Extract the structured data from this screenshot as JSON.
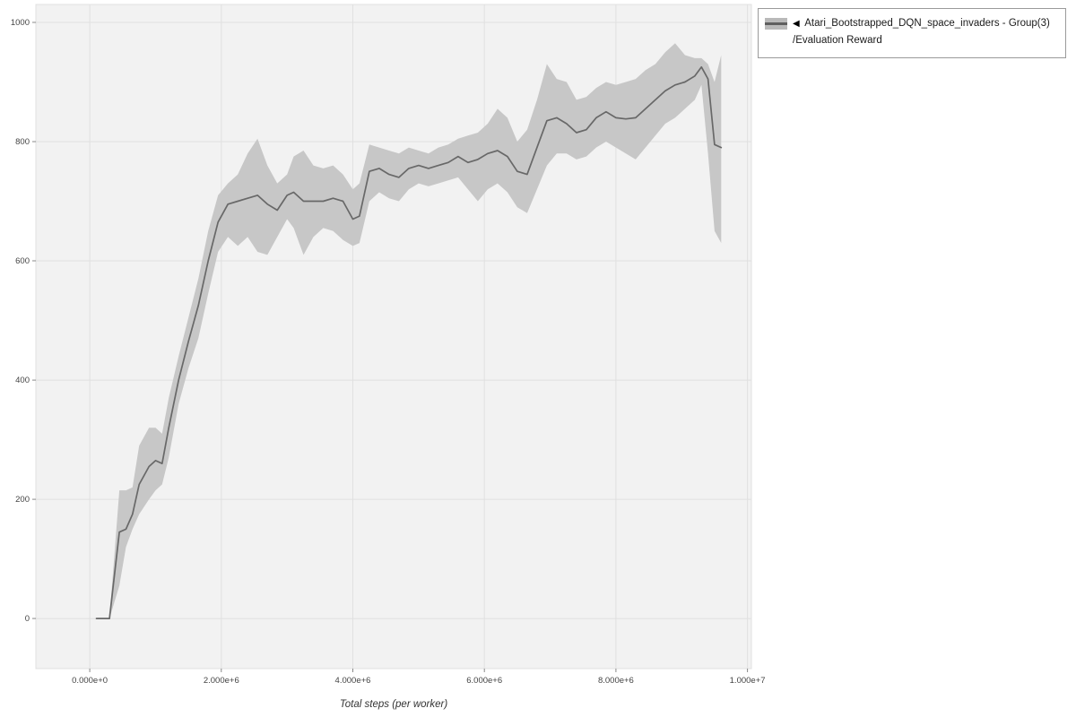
{
  "page": {
    "background": "#ffffff"
  },
  "legend": {
    "toggle_icon": "◀",
    "series_name": "Atari_Bootstrapped_DQN_space_invaders - Group(3)",
    "metric": "/Evaluation Reward"
  },
  "chart_data": {
    "type": "line",
    "title": "",
    "xlabel": "Total steps (per worker)",
    "ylabel": "",
    "grid": true,
    "legend_position": "top-right-outside",
    "xlim": [
      -820000,
      10060000
    ],
    "ylim": [
      -84,
      1030
    ],
    "x_ticks": {
      "values": [
        0,
        2000000,
        4000000,
        6000000,
        8000000,
        10000000
      ],
      "labels": [
        "0.000e+0",
        "2.000e+6",
        "4.000e+6",
        "6.000e+6",
        "8.000e+6",
        "1.000e+7"
      ]
    },
    "y_ticks": {
      "values": [
        0,
        200,
        400,
        600,
        800,
        1000
      ],
      "labels": [
        "0",
        "200",
        "400",
        "600",
        "800",
        "1000"
      ]
    },
    "colors": {
      "line": "#686868",
      "band": "#c7c7c7",
      "plot_bg": "#f2f2f2",
      "grid": "#e0e0e0",
      "tick": "#888888",
      "tick_text": "#444444"
    },
    "series": [
      {
        "name": "Atari_Bootstrapped_DQN_space_invaders - Group(3)/Evaluation Reward",
        "x": [
          100000,
          300000,
          450000,
          550000,
          650000,
          750000,
          900000,
          1000000,
          1100000,
          1200000,
          1350000,
          1500000,
          1650000,
          1800000,
          1950000,
          2100000,
          2250000,
          2400000,
          2550000,
          2700000,
          2850000,
          3000000,
          3100000,
          3250000,
          3400000,
          3550000,
          3700000,
          3850000,
          4000000,
          4100000,
          4250000,
          4400000,
          4550000,
          4700000,
          4850000,
          5000000,
          5150000,
          5300000,
          5450000,
          5600000,
          5750000,
          5900000,
          6050000,
          6200000,
          6350000,
          6500000,
          6650000,
          6800000,
          6950000,
          7100000,
          7250000,
          7400000,
          7550000,
          7700000,
          7850000,
          8000000,
          8150000,
          8300000,
          8450000,
          8600000,
          8750000,
          8900000,
          9050000,
          9200000,
          9300000,
          9400000,
          9500000,
          9600000
        ],
        "mean": [
          0,
          0,
          145,
          150,
          175,
          225,
          255,
          265,
          260,
          320,
          400,
          465,
          525,
          600,
          665,
          695,
          700,
          705,
          710,
          695,
          685,
          710,
          715,
          700,
          700,
          700,
          705,
          700,
          670,
          675,
          750,
          755,
          745,
          740,
          755,
          760,
          755,
          760,
          765,
          775,
          765,
          770,
          780,
          785,
          775,
          750,
          745,
          790,
          835,
          840,
          830,
          815,
          820,
          840,
          850,
          840,
          838,
          840,
          855,
          870,
          885,
          895,
          900,
          910,
          925,
          905,
          795,
          790
        ],
        "lower": [
          0,
          0,
          55,
          120,
          150,
          175,
          200,
          215,
          225,
          270,
          360,
          420,
          470,
          545,
          615,
          640,
          625,
          640,
          615,
          610,
          640,
          670,
          655,
          610,
          640,
          655,
          650,
          635,
          625,
          630,
          700,
          715,
          705,
          700,
          720,
          730,
          725,
          730,
          735,
          740,
          720,
          700,
          720,
          730,
          715,
          690,
          680,
          720,
          760,
          780,
          780,
          770,
          775,
          790,
          800,
          790,
          780,
          770,
          790,
          810,
          830,
          840,
          855,
          870,
          895,
          780,
          650,
          630
        ],
        "upper": [
          0,
          0,
          215,
          215,
          220,
          290,
          320,
          320,
          310,
          370,
          440,
          505,
          570,
          650,
          710,
          730,
          745,
          780,
          805,
          760,
          730,
          745,
          775,
          785,
          760,
          755,
          760,
          745,
          720,
          730,
          795,
          790,
          785,
          780,
          790,
          785,
          780,
          790,
          795,
          805,
          810,
          815,
          830,
          855,
          840,
          800,
          820,
          870,
          930,
          905,
          900,
          870,
          875,
          890,
          900,
          895,
          900,
          905,
          920,
          930,
          950,
          965,
          945,
          940,
          940,
          930,
          900,
          945
        ]
      }
    ]
  }
}
